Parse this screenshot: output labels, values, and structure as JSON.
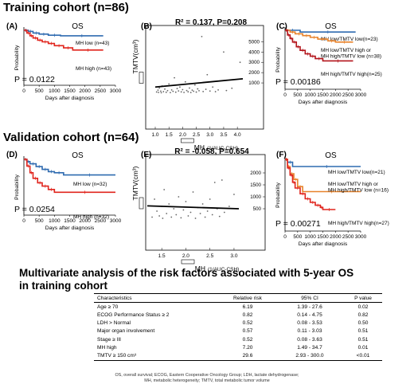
{
  "headings": {
    "training": "Training cohort (n=86)",
    "validation": "Validation cohort (n=64)",
    "multivariate_line1": "Multivariate analysis of the risk factors associated with 5-year OS",
    "multivariate_line2": "in training cohort"
  },
  "colors": {
    "blue": "#2f6bb0",
    "red": "#e0241c",
    "orange": "#e8822a",
    "darkred": "#b3141b"
  },
  "table": {
    "headers": [
      "Characteristics",
      "Relative risk",
      "95% CI",
      "P value"
    ],
    "rows": [
      [
        "Age ≥ 70",
        "6.19",
        "1.39 - 27.6",
        "0.02"
      ],
      [
        "ECOG Performance Status ≥ 2",
        "0.82",
        "0.14 - 4.75",
        "0.82"
      ],
      [
        "LDH > Normal",
        "0.52",
        "0.08 - 3.53",
        "0.50"
      ],
      [
        "Major organ involvement",
        "0.57",
        "0.11 - 3.03",
        "0.51"
      ],
      [
        "Stage ≥ III",
        "0.52",
        "0.08 - 3.63",
        "0.51"
      ],
      [
        "MH high",
        "7.20",
        "1.49 - 34.7",
        "0.01"
      ],
      [
        "TMTV ≥ 150 cm³",
        "29.6",
        "2.93 - 300.0",
        "<0.01"
      ]
    ],
    "footnote_line1": "OS, overall survival; ECOG, Eastern Cooperative Oncology Group; LDH, lactate dehydrogenase;",
    "footnote_line2": "MH, metabolic heterogeneity; TMTV, total metabolic tumor volume"
  },
  "chart_data": [
    {
      "id": "A",
      "type": "line",
      "panel_label": "(A)",
      "title": "OS",
      "xlabel": "Days after diagnosis",
      "ylabel": "Probability",
      "xlim": [
        0,
        3000
      ],
      "ylim": [
        0,
        1
      ],
      "xticks": [
        "0",
        "500",
        "1000",
        "1500",
        "2000",
        "2500",
        "3000"
      ],
      "annotation": "P = 0.0122",
      "series": [
        {
          "name": "MH low (n=43)",
          "color": "blue",
          "end_label": "MH low (n=43)",
          "x": [
            0,
            150,
            300,
            500,
            800,
            1200,
            2600
          ],
          "y": [
            1,
            0.98,
            0.95,
            0.93,
            0.91,
            0.9,
            0.9
          ]
        },
        {
          "name": "MH high (n=43)",
          "color": "red",
          "end_label": "MH high (n=43)",
          "x": [
            0,
            100,
            200,
            300,
            450,
            600,
            800,
            1000,
            1300,
            1600,
            2600
          ],
          "y": [
            1,
            0.95,
            0.9,
            0.86,
            0.82,
            0.79,
            0.76,
            0.72,
            0.68,
            0.64,
            0.64
          ]
        }
      ]
    },
    {
      "id": "B",
      "type": "scatter",
      "panel_label": "(B)",
      "title": "R² = 0.137, P=0.208",
      "xlabel": "MH",
      "xlabel_unit": "(1/AUC-CSH)",
      "ylabel": "TMTV(cm³)",
      "xlim": [
        1.0,
        4.2
      ],
      "ylim": [
        0,
        5800
      ],
      "xticks": [
        "1.0",
        "1.5",
        "2.0",
        "2.5",
        "3.0",
        "3.5",
        "4.0"
      ],
      "yticks": [
        "1000",
        "2000",
        "3000",
        "4000",
        "5000"
      ],
      "fit": {
        "x": [
          1.0,
          4.2
        ],
        "y": [
          600,
          1400
        ]
      },
      "points": [
        [
          1.05,
          120
        ],
        [
          1.1,
          300
        ],
        [
          1.12,
          80
        ],
        [
          1.15,
          500
        ],
        [
          1.2,
          200
        ],
        [
          1.22,
          50
        ],
        [
          1.25,
          700
        ],
        [
          1.3,
          150
        ],
        [
          1.35,
          400
        ],
        [
          1.4,
          90
        ],
        [
          1.45,
          250
        ],
        [
          1.5,
          900
        ],
        [
          1.55,
          60
        ],
        [
          1.6,
          320
        ],
        [
          1.65,
          180
        ],
        [
          1.7,
          1500
        ],
        [
          1.75,
          100
        ],
        [
          1.8,
          450
        ],
        [
          1.85,
          220
        ],
        [
          1.9,
          600
        ],
        [
          1.95,
          130
        ],
        [
          2.0,
          350
        ],
        [
          2.05,
          80
        ],
        [
          2.1,
          1100
        ],
        [
          2.15,
          260
        ],
        [
          2.2,
          140
        ],
        [
          2.25,
          500
        ],
        [
          2.3,
          70
        ],
        [
          2.35,
          300
        ],
        [
          2.4,
          190
        ],
        [
          2.45,
          800
        ],
        [
          2.5,
          110
        ],
        [
          2.55,
          420
        ],
        [
          2.6,
          240
        ],
        [
          2.7,
          5500
        ],
        [
          2.75,
          160
        ],
        [
          2.85,
          380
        ],
        [
          2.9,
          1800
        ],
        [
          3.0,
          210
        ],
        [
          3.1,
          600
        ],
        [
          3.2,
          150
        ],
        [
          3.3,
          320
        ],
        [
          3.5,
          4000
        ],
        [
          3.6,
          260
        ],
        [
          3.8,
          480
        ],
        [
          4.1,
          3000
        ]
      ]
    },
    {
      "id": "C",
      "type": "line",
      "panel_label": "(C)",
      "title": "OS",
      "xlabel": "Days after diagnosis",
      "ylabel": "Probability",
      "xlim": [
        0,
        3000
      ],
      "ylim": [
        0,
        1
      ],
      "xticks": [
        "0",
        "500",
        "1000",
        "1500",
        "2000",
        "2500",
        "3000"
      ],
      "annotation": "P = 0.00186",
      "series": [
        {
          "name": "MH low/TMTV low(n=23)",
          "color": "blue",
          "end_label": "MH low/TMTV low(n=23)",
          "x": [
            0,
            600,
            2800
          ],
          "y": [
            1,
            0.97,
            0.97
          ]
        },
        {
          "name": "MH low/TMTV high or MH high/TMTV low (n=38)",
          "color": "orange",
          "end_label": "MH low/TMTV high or MH high/TMTV low (n=38)",
          "x": [
            0,
            200,
            400,
            700,
            1000,
            1300,
            1700,
            2000,
            2700
          ],
          "y": [
            1,
            0.97,
            0.94,
            0.91,
            0.88,
            0.85,
            0.82,
            0.8,
            0.8
          ]
        },
        {
          "name": "MH high/TMTV high(n=25)",
          "color": "darkred",
          "end_label": "MH high/TMTV high(n=25)",
          "x": [
            0,
            100,
            200,
            300,
            450,
            600,
            800,
            1000,
            1200,
            1500,
            2700
          ],
          "y": [
            1,
            0.92,
            0.86,
            0.8,
            0.72,
            0.66,
            0.6,
            0.56,
            0.52,
            0.48,
            0.48
          ]
        }
      ]
    },
    {
      "id": "D",
      "type": "line",
      "panel_label": "(D)",
      "title": "OS",
      "xlabel": "Days after diagnosis",
      "ylabel": "Probability",
      "xlim": [
        0,
        3000
      ],
      "ylim": [
        0,
        1
      ],
      "xticks": [
        "0",
        "500",
        "1000",
        "1500",
        "2000",
        "2500",
        "3000"
      ],
      "annotation": "P = 0.0254",
      "series": [
        {
          "name": "MH low (n=32)",
          "color": "blue",
          "end_label": "MH low (n=32)",
          "x": [
            0,
            100,
            200,
            400,
            600,
            800,
            1000,
            1300,
            3000
          ],
          "y": [
            1,
            0.96,
            0.92,
            0.87,
            0.82,
            0.78,
            0.76,
            0.72,
            0.72
          ]
        },
        {
          "name": "MH high (n=32)",
          "color": "red",
          "end_label": "MH high (n=32)",
          "x": [
            0,
            100,
            200,
            300,
            450,
            600,
            800,
            1000,
            3000
          ],
          "y": [
            1,
            0.88,
            0.76,
            0.66,
            0.58,
            0.52,
            0.46,
            0.41,
            0.41
          ]
        }
      ]
    },
    {
      "id": "E",
      "type": "scatter",
      "panel_label": "(E)",
      "title": "R² = -0.058, P=0.654",
      "xlabel": "MH",
      "xlabel_unit": "(1/AUC-CSH)",
      "ylabel": "TMTV(cm³)",
      "xlim": [
        1.2,
        3.1
      ],
      "ylim": [
        0,
        2400
      ],
      "xticks": [
        "1.5",
        "2.0",
        "2.5",
        "3.0"
      ],
      "yticks": [
        "500",
        "1000",
        "1500",
        "2000"
      ],
      "fit": {
        "x": [
          1.2,
          3.1
        ],
        "y": [
          620,
          500
        ]
      },
      "points": [
        [
          1.3,
          150
        ],
        [
          1.35,
          900
        ],
        [
          1.4,
          400
        ],
        [
          1.45,
          200
        ],
        [
          1.5,
          600
        ],
        [
          1.52,
          100
        ],
        [
          1.55,
          1300
        ],
        [
          1.6,
          300
        ],
        [
          1.65,
          700
        ],
        [
          1.7,
          150
        ],
        [
          1.75,
          500
        ],
        [
          1.8,
          250
        ],
        [
          1.85,
          1000
        ],
        [
          1.9,
          120
        ],
        [
          1.95,
          450
        ],
        [
          2.0,
          800
        ],
        [
          2.05,
          200
        ],
        [
          2.1,
          350
        ],
        [
          2.15,
          1200
        ],
        [
          2.2,
          100
        ],
        [
          2.25,
          550
        ],
        [
          2.3,
          300
        ],
        [
          2.35,
          700
        ],
        [
          2.4,
          150
        ],
        [
          2.45,
          400
        ],
        [
          2.5,
          900
        ],
        [
          2.55,
          250
        ],
        [
          2.6,
          1600
        ],
        [
          2.65,
          500
        ],
        [
          2.7,
          180
        ],
        [
          2.75,
          1700
        ],
        [
          2.8,
          350
        ],
        [
          2.9,
          600
        ],
        [
          3.0,
          1100
        ]
      ]
    },
    {
      "id": "F",
      "type": "line",
      "panel_label": "(F)",
      "title": "OS",
      "xlabel": "Days after diagnosis",
      "ylabel": "Probability",
      "xlim": [
        0,
        3000
      ],
      "ylim": [
        0,
        1
      ],
      "xticks": [
        "0",
        "500",
        "1000",
        "1500",
        "2000",
        "2500",
        "3000"
      ],
      "annotation": "P = 0.00271",
      "series": [
        {
          "name": "MH low/TMTV low(n=21)",
          "color": "blue",
          "end_label": "MH low/TMTV low(n=21)",
          "x": [
            0,
            100,
            300,
            3000
          ],
          "y": [
            1,
            0.96,
            0.9,
            0.9
          ]
        },
        {
          "name": "MH low/TMTV high or MH high/TMTV low (n=16)",
          "color": "orange",
          "end_label": "MH low/TMTV high or MH high/TMTV low (n=16)",
          "x": [
            0,
            100,
            200,
            350,
            500,
            700,
            3000
          ],
          "y": [
            1,
            0.9,
            0.8,
            0.72,
            0.62,
            0.55,
            0.55
          ]
        },
        {
          "name": "MH high/TMTV high(n=27)",
          "color": "red",
          "end_label": "MH high/TMTV high(n=27)",
          "x": [
            0,
            100,
            200,
            300,
            400,
            600,
            800,
            1000,
            1200,
            1400,
            1500,
            2000
          ],
          "y": [
            1,
            0.88,
            0.78,
            0.68,
            0.6,
            0.52,
            0.45,
            0.4,
            0.36,
            0.33,
            0.3,
            0.3
          ]
        }
      ]
    }
  ]
}
